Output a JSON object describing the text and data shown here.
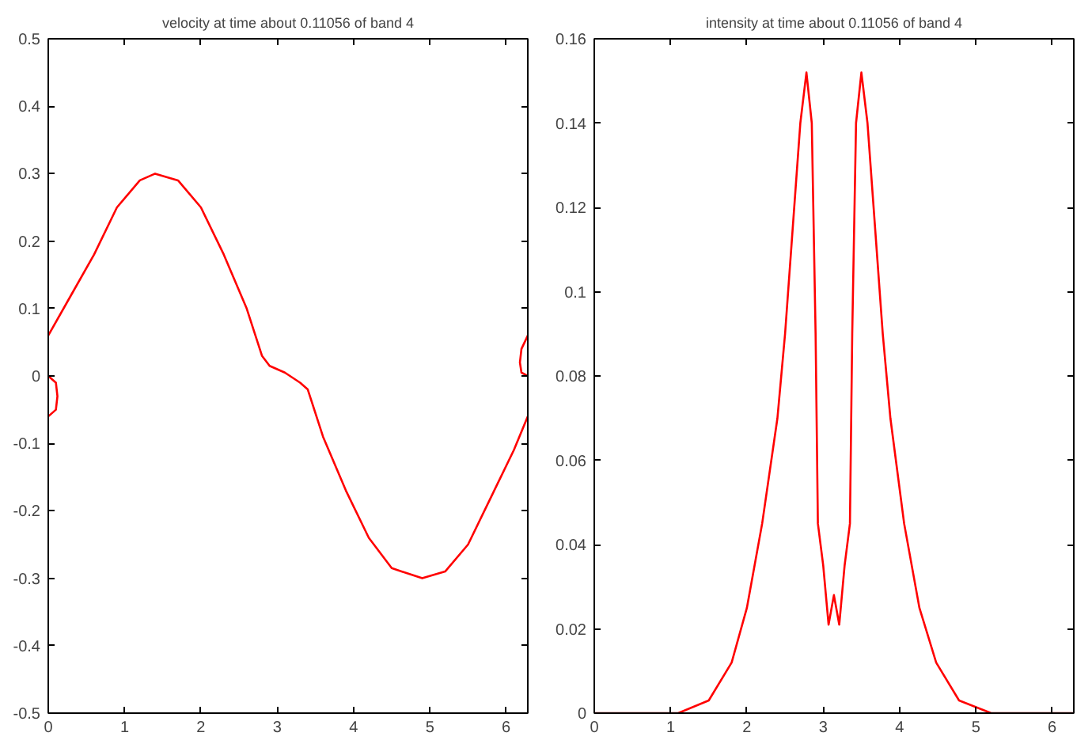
{
  "chart_data": [
    {
      "type": "line",
      "title": "velocity at time about 0.11056 of band 4",
      "x": [
        0,
        0.3,
        0.6,
        0.9,
        1.2,
        1.4,
        1.7,
        2.0,
        2.3,
        2.6,
        2.8,
        2.9,
        3.1,
        3.3,
        3.4,
        3.6,
        3.9,
        4.2,
        4.5,
        4.9,
        5.2,
        5.5,
        5.8,
        6.1,
        6.2832,
        null,
        0,
        0.1,
        0.12,
        0.1,
        0,
        null,
        6.2832,
        6.2,
        6.18,
        6.2,
        6.2832
      ],
      "series": [
        {
          "color": "#ff0000",
          "values": [
            0.06,
            0.12,
            0.18,
            0.25,
            0.29,
            0.3,
            0.29,
            0.25,
            0.18,
            0.1,
            0.03,
            0.015,
            0.005,
            -0.01,
            -0.02,
            -0.09,
            -0.17,
            -0.24,
            -0.285,
            -0.3,
            -0.29,
            -0.25,
            -0.18,
            -0.11,
            -0.06,
            null,
            0,
            -0.01,
            -0.03,
            -0.05,
            -0.06,
            null,
            0.06,
            0.04,
            0.02,
            0.005,
            0
          ]
        }
      ],
      "xlim": [
        0,
        6.2832
      ],
      "xticks": [
        0,
        1,
        2,
        3,
        4,
        5,
        6
      ],
      "ylim": [
        -0.5,
        0.5
      ],
      "yticks": [
        -0.5,
        -0.4,
        -0.3,
        -0.2,
        -0.1,
        0,
        0.1,
        0.2,
        0.3,
        0.4,
        0.5
      ],
      "grid": false
    },
    {
      "type": "line",
      "title": "intensity at time about 0.11056 of band 4",
      "x": [
        0,
        1.1,
        1.5,
        1.8,
        2.0,
        2.2,
        2.4,
        2.5,
        2.6,
        2.7,
        2.78,
        2.85,
        2.9,
        2.93,
        3.0,
        3.07,
        3.14,
        3.21,
        3.28,
        3.35,
        3.38,
        3.43,
        3.5,
        3.58,
        3.68,
        3.78,
        3.88,
        4.06,
        4.26,
        4.48,
        4.78,
        5.2,
        6.2832
      ],
      "series": [
        {
          "color": "#ff0000",
          "values": [
            0,
            0,
            0.003,
            0.012,
            0.025,
            0.045,
            0.07,
            0.09,
            0.115,
            0.14,
            0.152,
            0.14,
            0.09,
            0.045,
            0.035,
            0.021,
            0.028,
            0.021,
            0.035,
            0.045,
            0.09,
            0.14,
            0.152,
            0.14,
            0.115,
            0.09,
            0.07,
            0.045,
            0.025,
            0.012,
            0.003,
            0,
            0
          ]
        }
      ],
      "xlim": [
        0,
        6.2832
      ],
      "xticks": [
        0,
        1,
        2,
        3,
        4,
        5,
        6
      ],
      "ylim": [
        0,
        0.16
      ],
      "yticks": [
        0,
        0.02,
        0.04,
        0.06,
        0.08,
        0.1,
        0.12,
        0.14,
        0.16
      ],
      "grid": false
    }
  ]
}
